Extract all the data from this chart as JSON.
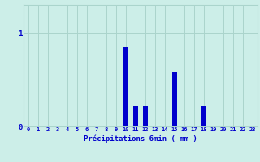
{
  "hours": [
    0,
    1,
    2,
    3,
    4,
    5,
    6,
    7,
    8,
    9,
    10,
    11,
    12,
    13,
    14,
    15,
    16,
    17,
    18,
    19,
    20,
    21,
    22,
    23
  ],
  "values": [
    0,
    0,
    0,
    0,
    0,
    0,
    0,
    0,
    0,
    0,
    0.85,
    0.22,
    0.22,
    0,
    0,
    0.58,
    0,
    0,
    0.22,
    0,
    0,
    0,
    0,
    0
  ],
  "bar_color": "#0000cc",
  "bg_color": "#cceee8",
  "grid_color": "#aad4cc",
  "xlabel": "Précipitations 6min ( mm )",
  "xlabel_color": "#0000cc",
  "tick_color": "#0000cc",
  "ytick_value": 1.0,
  "ylim_max": 1.3,
  "xlim_min": -0.5,
  "xlim_max": 23.5,
  "bar_width": 0.5
}
